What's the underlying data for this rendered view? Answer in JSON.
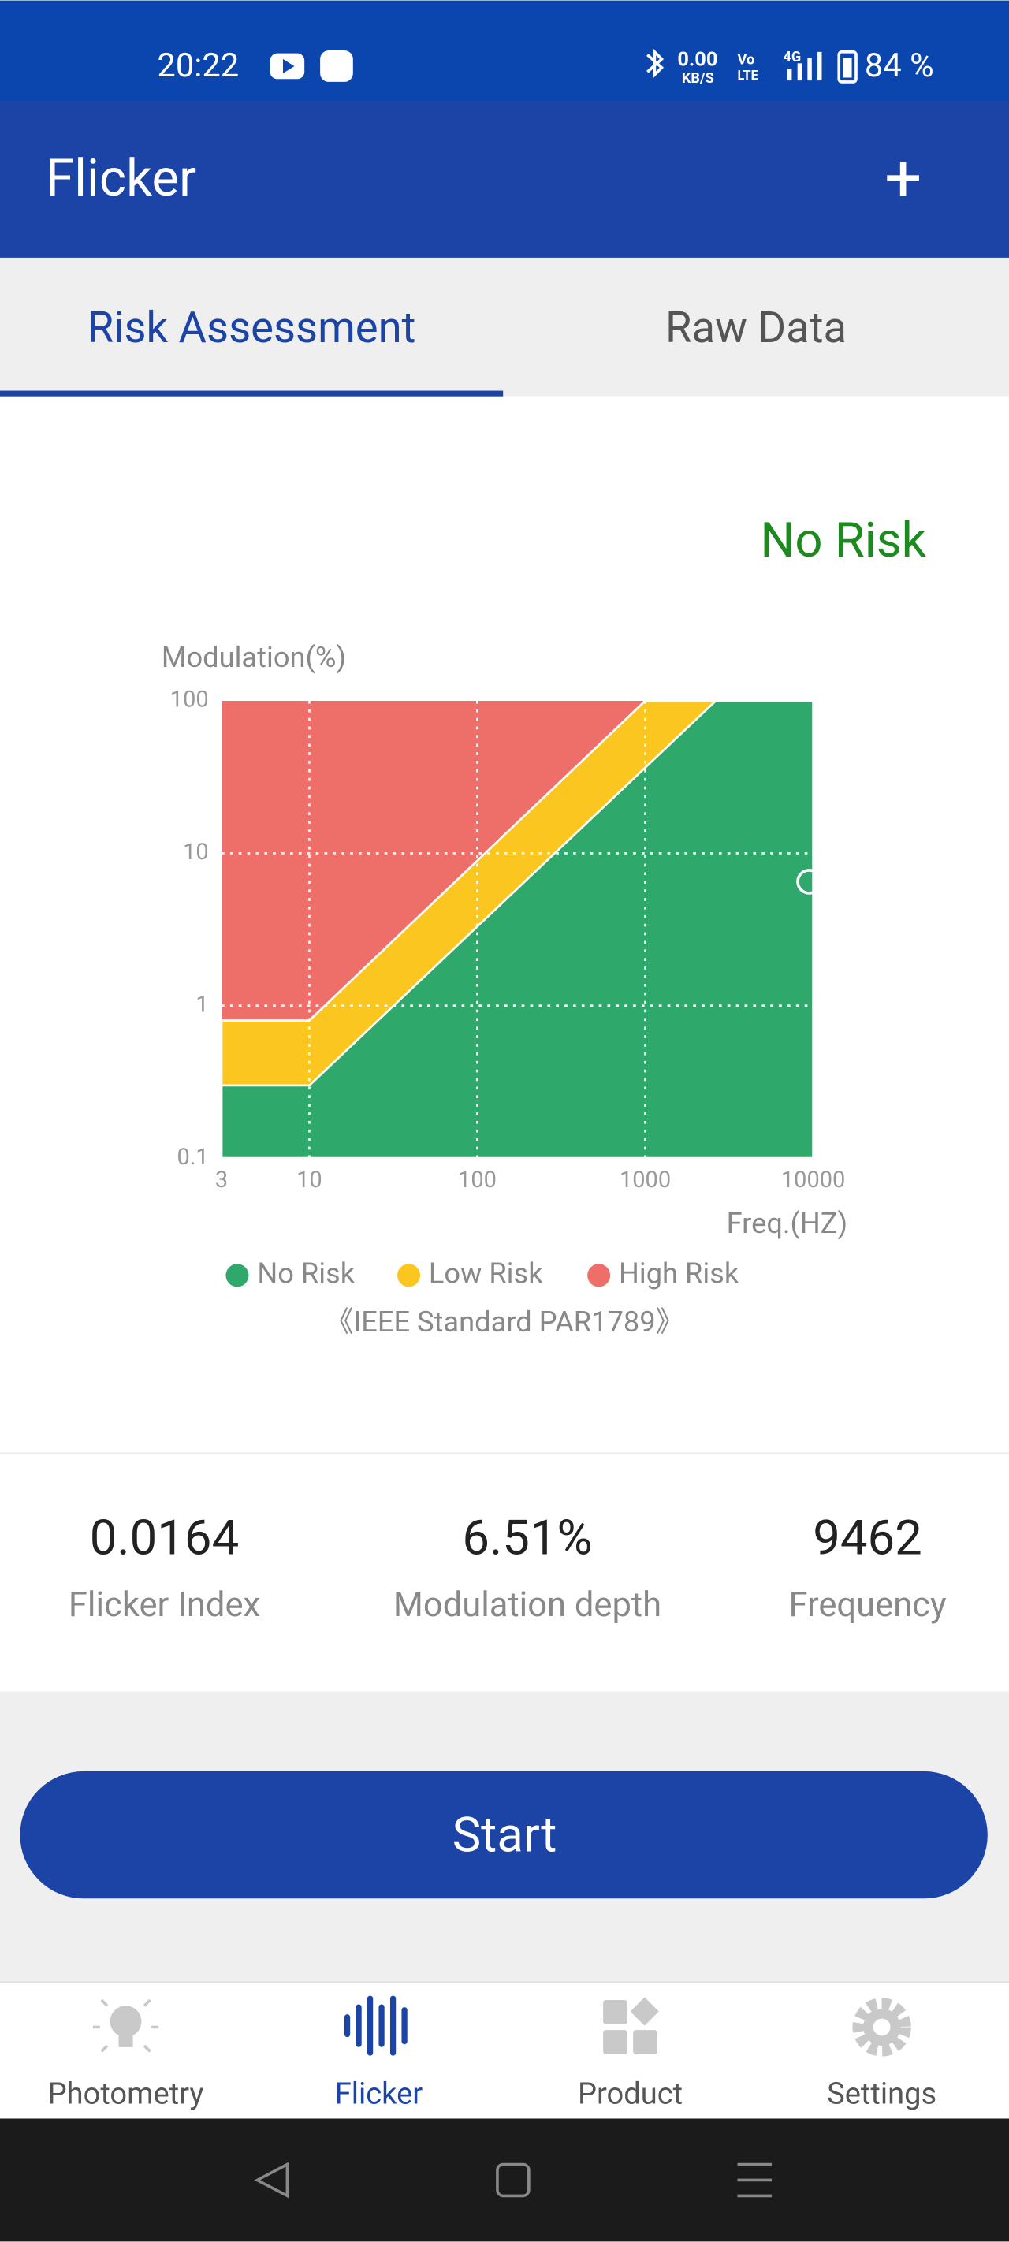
{
  "status": {
    "time": "20:22",
    "speed": "0.00",
    "speed_unit": "KB/S",
    "volte_top": "Vo",
    "volte_bottom": "LTE",
    "network": "4G",
    "battery": "84 %"
  },
  "app_bar": {
    "title": "Flicker",
    "action": "+"
  },
  "tabs": [
    "Risk Assessment",
    "Raw Data"
  ],
  "result": "No Risk",
  "chart_data": {
    "type": "area",
    "y_label": "Modulation(%)",
    "x_label": "Freq.(HZ)",
    "xscale": "log",
    "yscale": "log",
    "xlim": [
      3,
      10000
    ],
    "ylim": [
      0.1,
      100
    ],
    "xticks": [
      3,
      10,
      100,
      1000,
      10000
    ],
    "yticks": [
      0.1,
      1,
      10,
      100
    ],
    "grid": true,
    "series": [
      {
        "name": "No Risk",
        "color": "#2fa86b",
        "x": [
          3,
          10,
          2630
        ],
        "values": [
          0.3,
          0.3,
          100
        ]
      },
      {
        "name": "Low Risk",
        "color": "#fbc61f",
        "x": [
          3,
          10,
          1000
        ],
        "values": [
          0.8,
          0.8,
          100
        ]
      },
      {
        "name": "High Risk",
        "color": "#ee6f69"
      }
    ],
    "standard": "《IEEE Standard PAR1789》"
  },
  "metrics": [
    {
      "value": 0.0164,
      "name": "Flicker Index"
    },
    {
      "value": 6.51,
      "value_label": "6.51%",
      "name": "Modulation depth"
    },
    {
      "value": 9462,
      "name": "Frequency"
    }
  ],
  "button": "Start",
  "nav": [
    "Photometry",
    "Flicker",
    "Product",
    "Settings"
  ]
}
